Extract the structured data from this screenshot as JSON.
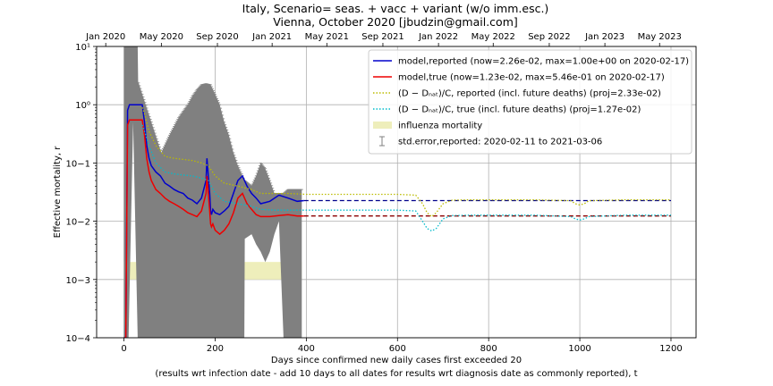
{
  "chart_data": {
    "type": "line",
    "title": "Italy, Scenario= seas. + vacc + variant (w/o imm.esc.)",
    "subtitle": "Vienna, October 2020 [jbudzin@gmail.com]",
    "xlabel": "Days since confirmed new daily cases first exceeded 20",
    "xlabel2": "(results wrt infection date - add 10 days to all dates for results wrt diagnosis date as commonly reported), t",
    "ylabel": "Effective mortality, r",
    "xlim": [
      -60,
      1255
    ],
    "ylim": [
      0.0001,
      10
    ],
    "y_scale": "log",
    "grid": true,
    "legend_position": "top-right",
    "x_ticks": [
      0,
      200,
      400,
      600,
      800,
      1000,
      1200
    ],
    "y_ticks": [
      {
        "value": 0.0001,
        "label": "10−4"
      },
      {
        "value": 0.001,
        "label": "10−3"
      },
      {
        "value": 0.01,
        "label": "10−2"
      },
      {
        "value": 0.1,
        "label": "10−1"
      },
      {
        "value": 1,
        "label": "10⁰"
      },
      {
        "value": 10,
        "label": "10¹"
      }
    ],
    "top_axis_ticks": [
      {
        "value": -40,
        "label": "Jan 2020"
      },
      {
        "value": 82,
        "label": "May 2020"
      },
      {
        "value": 205,
        "label": "Sep 2020"
      },
      {
        "value": 325,
        "label": "Jan 2021"
      },
      {
        "value": 445,
        "label": "May 2021"
      },
      {
        "value": 568,
        "label": "Sep 2021"
      },
      {
        "value": 690,
        "label": "Jan 2022"
      },
      {
        "value": 810,
        "label": "May 2022"
      },
      {
        "value": 933,
        "label": "Sep 2022"
      },
      {
        "value": 1055,
        "label": "Jan 2023"
      },
      {
        "value": 1175,
        "label": "May 2023"
      }
    ],
    "series": [
      {
        "name": "model,reported (now=2.26e-02, max=1.00e+00 on 2020-02-17)",
        "color": "#0000cc",
        "style": "solid",
        "x": [
          0,
          4,
          8,
          12,
          30,
          40,
          45,
          50,
          55,
          60,
          70,
          80,
          90,
          100,
          110,
          120,
          130,
          140,
          150,
          160,
          170,
          180,
          182,
          185,
          188,
          190,
          192,
          195,
          200,
          210,
          220,
          230,
          240,
          250,
          260,
          270,
          280,
          290,
          300,
          320,
          340,
          360,
          380,
          395
        ],
        "y": [
          0.0001,
          0.0001,
          0.8,
          1.0,
          1.0,
          1.0,
          0.5,
          0.2,
          0.12,
          0.09,
          0.07,
          0.06,
          0.045,
          0.04,
          0.035,
          0.032,
          0.03,
          0.025,
          0.023,
          0.02,
          0.025,
          0.05,
          0.12,
          0.06,
          0.03,
          0.015,
          0.013,
          0.016,
          0.014,
          0.013,
          0.015,
          0.018,
          0.03,
          0.05,
          0.06,
          0.04,
          0.03,
          0.025,
          0.02,
          0.022,
          0.028,
          0.025,
          0.022,
          0.0226
        ]
      },
      {
        "name": "model,reported projection",
        "color": "#00008b",
        "style": "dashed",
        "in_legend": false,
        "x": [
          395,
          1200
        ],
        "y": [
          0.0226,
          0.0226
        ]
      },
      {
        "name": "model,true (now=1.23e-02, max=5.46e-01 on 2020-02-17)",
        "color": "#ee0000",
        "style": "solid",
        "x": [
          0,
          4,
          8,
          12,
          30,
          40,
          45,
          50,
          55,
          60,
          70,
          80,
          90,
          100,
          110,
          120,
          130,
          140,
          150,
          160,
          170,
          180,
          182,
          185,
          188,
          190,
          192,
          195,
          200,
          210,
          220,
          230,
          240,
          250,
          260,
          270,
          280,
          290,
          300,
          320,
          340,
          360,
          380,
          395
        ],
        "y": [
          0.0001,
          0.0001,
          0.45,
          0.546,
          0.546,
          0.546,
          0.3,
          0.12,
          0.07,
          0.05,
          0.035,
          0.03,
          0.025,
          0.022,
          0.02,
          0.018,
          0.016,
          0.014,
          0.013,
          0.012,
          0.015,
          0.03,
          0.06,
          0.03,
          0.015,
          0.009,
          0.008,
          0.009,
          0.007,
          0.006,
          0.007,
          0.009,
          0.014,
          0.025,
          0.03,
          0.02,
          0.016,
          0.013,
          0.012,
          0.012,
          0.0125,
          0.013,
          0.0123,
          0.0123
        ]
      },
      {
        "name": "model,true projection",
        "color": "#8b0000",
        "style": "dashed",
        "in_legend": false,
        "x": [
          395,
          1200
        ],
        "y": [
          0.0123,
          0.0123
        ]
      },
      {
        "name": "(D − Dₙₐₜ)/C, reported (incl. future deaths) (proj=2.33e-02)",
        "color": "#bbbb00",
        "style": "dotted",
        "x": [
          40,
          45,
          55,
          70,
          90,
          110,
          130,
          150,
          170,
          185,
          200,
          220,
          250,
          280,
          300,
          330,
          360,
          400,
          500,
          600,
          640,
          655,
          665,
          675,
          685,
          700,
          720,
          760,
          900,
          980,
          990,
          1000,
          1010,
          1020,
          1100,
          1200
        ],
        "y": [
          0.9,
          0.7,
          0.35,
          0.2,
          0.13,
          0.12,
          0.115,
          0.11,
          0.1,
          0.09,
          0.06,
          0.045,
          0.04,
          0.035,
          0.03,
          0.03,
          0.03,
          0.029,
          0.029,
          0.029,
          0.028,
          0.02,
          0.014,
          0.012,
          0.014,
          0.02,
          0.023,
          0.0233,
          0.0233,
          0.0225,
          0.02,
          0.019,
          0.02,
          0.0225,
          0.0233,
          0.0233
        ]
      },
      {
        "name": "(D − Dₙₐₜ)/C, true (incl. future deaths) (proj=1.27e-02)",
        "color": "#00bbcc",
        "style": "dotted",
        "x": [
          40,
          45,
          55,
          70,
          90,
          110,
          130,
          150,
          170,
          185,
          200,
          220,
          250,
          280,
          300,
          330,
          360,
          400,
          500,
          600,
          640,
          655,
          665,
          675,
          685,
          700,
          720,
          760,
          900,
          980,
          990,
          1000,
          1010,
          1020,
          1100,
          1200
        ],
        "y": [
          0.45,
          0.35,
          0.2,
          0.1,
          0.07,
          0.065,
          0.062,
          0.06,
          0.055,
          0.05,
          0.03,
          0.022,
          0.02,
          0.018,
          0.016,
          0.0155,
          0.0155,
          0.0155,
          0.0155,
          0.0155,
          0.015,
          0.01,
          0.0075,
          0.0068,
          0.0075,
          0.011,
          0.0125,
          0.0127,
          0.0127,
          0.012,
          0.011,
          0.0105,
          0.011,
          0.012,
          0.0127,
          0.0127
        ]
      }
    ],
    "influenza_band": {
      "label": "influenza mortality",
      "x": [
        0,
        390
      ],
      "y": [
        0.001,
        0.002
      ],
      "color": "#eeeebb"
    },
    "error_band": {
      "label": "std.error,reported: 2020-02-11 to 2021-03-06",
      "color": "#808080",
      "x": [
        0,
        3,
        4,
        10,
        20,
        30,
        31,
        82,
        100,
        120,
        140,
        150,
        160,
        170,
        180,
        190,
        200,
        210,
        220,
        230,
        240,
        250,
        260,
        264,
        265,
        280,
        290,
        300,
        310,
        320,
        330,
        340,
        350,
        360,
        370,
        380,
        390
      ],
      "lower": [
        0.0001,
        0.0001,
        0.0001,
        0.0001,
        0.5,
        0.0001,
        0.0001,
        0.0001,
        0.0001,
        0.0001,
        0.0001,
        0.0001,
        0.0001,
        0.0001,
        0.0001,
        0.0001,
        0.0001,
        0.0001,
        0.0001,
        0.0001,
        0.0001,
        0.0001,
        0.0001,
        0.0001,
        0.005,
        0.006,
        0.004,
        0.003,
        0.002,
        0.003,
        0.006,
        0.01,
        0.0001,
        0.0001,
        0.0001,
        0.0001,
        0.0001
      ],
      "upper": [
        10,
        10,
        10,
        10,
        10,
        10,
        2.5,
        0.15,
        0.3,
        0.6,
        1.0,
        1.4,
        1.8,
        2.2,
        2.3,
        2.2,
        1.5,
        1.0,
        0.5,
        0.3,
        0.15,
        0.09,
        0.06,
        0.05,
        0.05,
        0.04,
        0.06,
        0.1,
        0.08,
        0.05,
        0.03,
        0.03,
        0.03,
        0.035,
        0.035,
        0.035,
        0.035
      ]
    }
  }
}
